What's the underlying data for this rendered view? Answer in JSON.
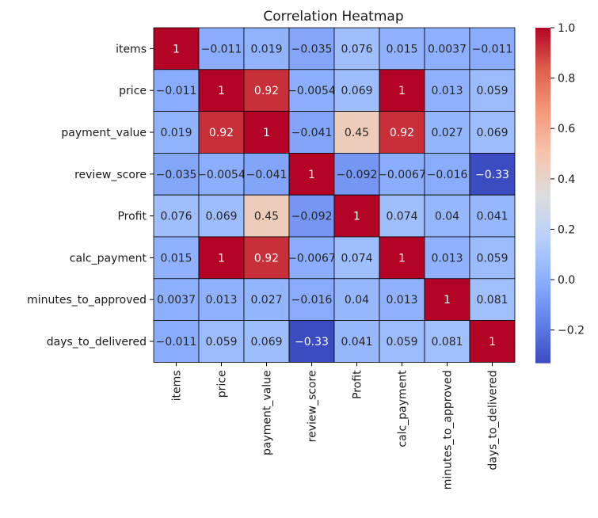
{
  "chart_data": {
    "type": "heatmap",
    "title": "Correlation Heatmap",
    "labels": [
      "items",
      "price",
      "payment_value",
      "review_score",
      "Profit",
      "calc_payment",
      "minutes_to_approved",
      "days_to_delivered"
    ],
    "values": [
      [
        1,
        -0.011,
        0.019,
        -0.035,
        0.076,
        0.015,
        0.0037,
        -0.011
      ],
      [
        -0.011,
        1,
        0.92,
        -0.0054,
        0.069,
        1,
        0.013,
        0.059
      ],
      [
        0.019,
        0.92,
        1,
        -0.041,
        0.45,
        0.92,
        0.027,
        0.069
      ],
      [
        -0.035,
        -0.0054,
        -0.041,
        1,
        -0.092,
        -0.0067,
        -0.016,
        -0.33
      ],
      [
        0.076,
        0.069,
        0.45,
        -0.092,
        1,
        0.074,
        0.04,
        0.041
      ],
      [
        0.015,
        1,
        0.92,
        -0.0067,
        0.074,
        1,
        0.013,
        0.059
      ],
      [
        0.0037,
        0.013,
        0.027,
        -0.016,
        0.04,
        0.013,
        1,
        0.081
      ],
      [
        -0.011,
        0.059,
        0.069,
        -0.33,
        0.041,
        0.059,
        0.081,
        1
      ]
    ],
    "colormap": "coolwarm",
    "colorbar": {
      "min": -0.33,
      "max": 1.0,
      "ticks": [
        -0.2,
        0.0,
        0.2,
        0.4,
        0.6,
        0.8,
        1.0
      ],
      "tick_labels": [
        "−0.2",
        "0.0",
        "0.2",
        "0.4",
        "0.6",
        "0.8",
        "1.0"
      ]
    },
    "annotations": true,
    "cell_border_color": "#000000"
  }
}
